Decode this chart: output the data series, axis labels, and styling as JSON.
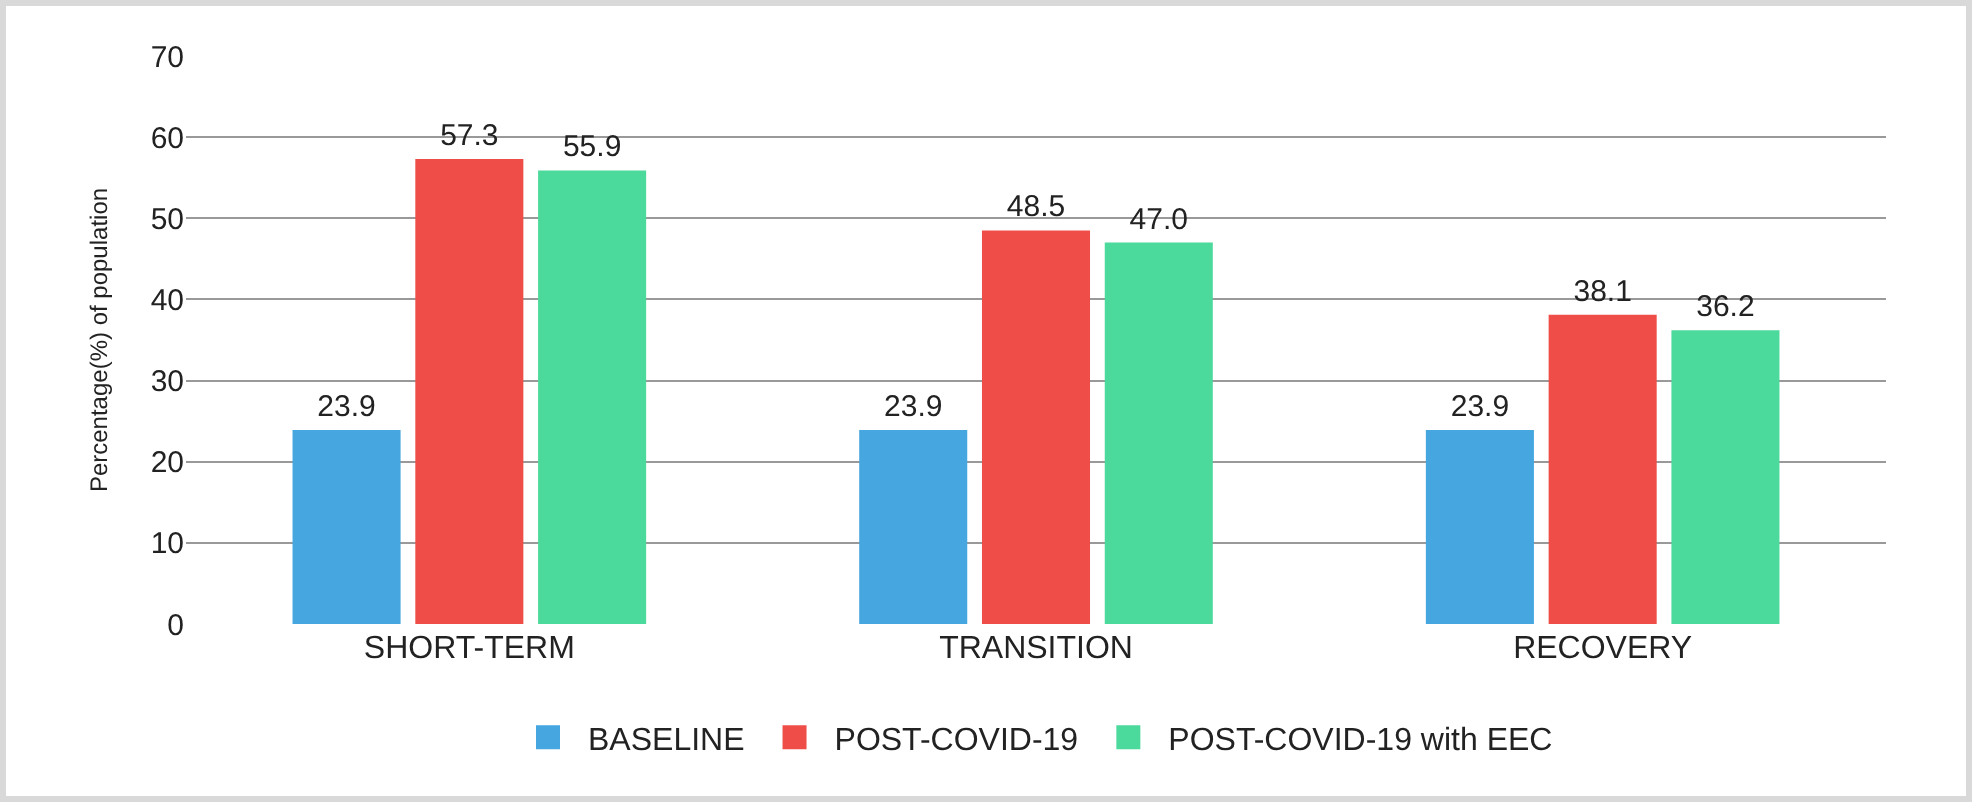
{
  "chart_data": {
    "type": "bar",
    "ylabel": "Percentage(%) of population",
    "categories": [
      "SHORT-TERM",
      "TRANSITION",
      "RECOVERY"
    ],
    "series": [
      {
        "name": "BASELINE",
        "color": "#45a6e0",
        "values": [
          23.9,
          23.9,
          23.9
        ]
      },
      {
        "name": "POST-COVID-19",
        "color": "#ef4e48",
        "values": [
          57.3,
          48.5,
          38.1
        ]
      },
      {
        "name": "POST-COVID-19 with EEC",
        "color": "#4cd99c",
        "values": [
          55.9,
          47.0,
          36.2
        ]
      }
    ],
    "value_labels": [
      [
        "23.9",
        "23.9",
        "23.9"
      ],
      [
        "57.3",
        "48.5",
        "38.1"
      ],
      [
        "55.9",
        "47.0",
        "36.2"
      ]
    ],
    "ylim": [
      0,
      70
    ],
    "yticks": [
      0,
      10,
      20,
      30,
      40,
      50,
      60,
      70
    ],
    "grid": "y",
    "legend": "bottom"
  }
}
